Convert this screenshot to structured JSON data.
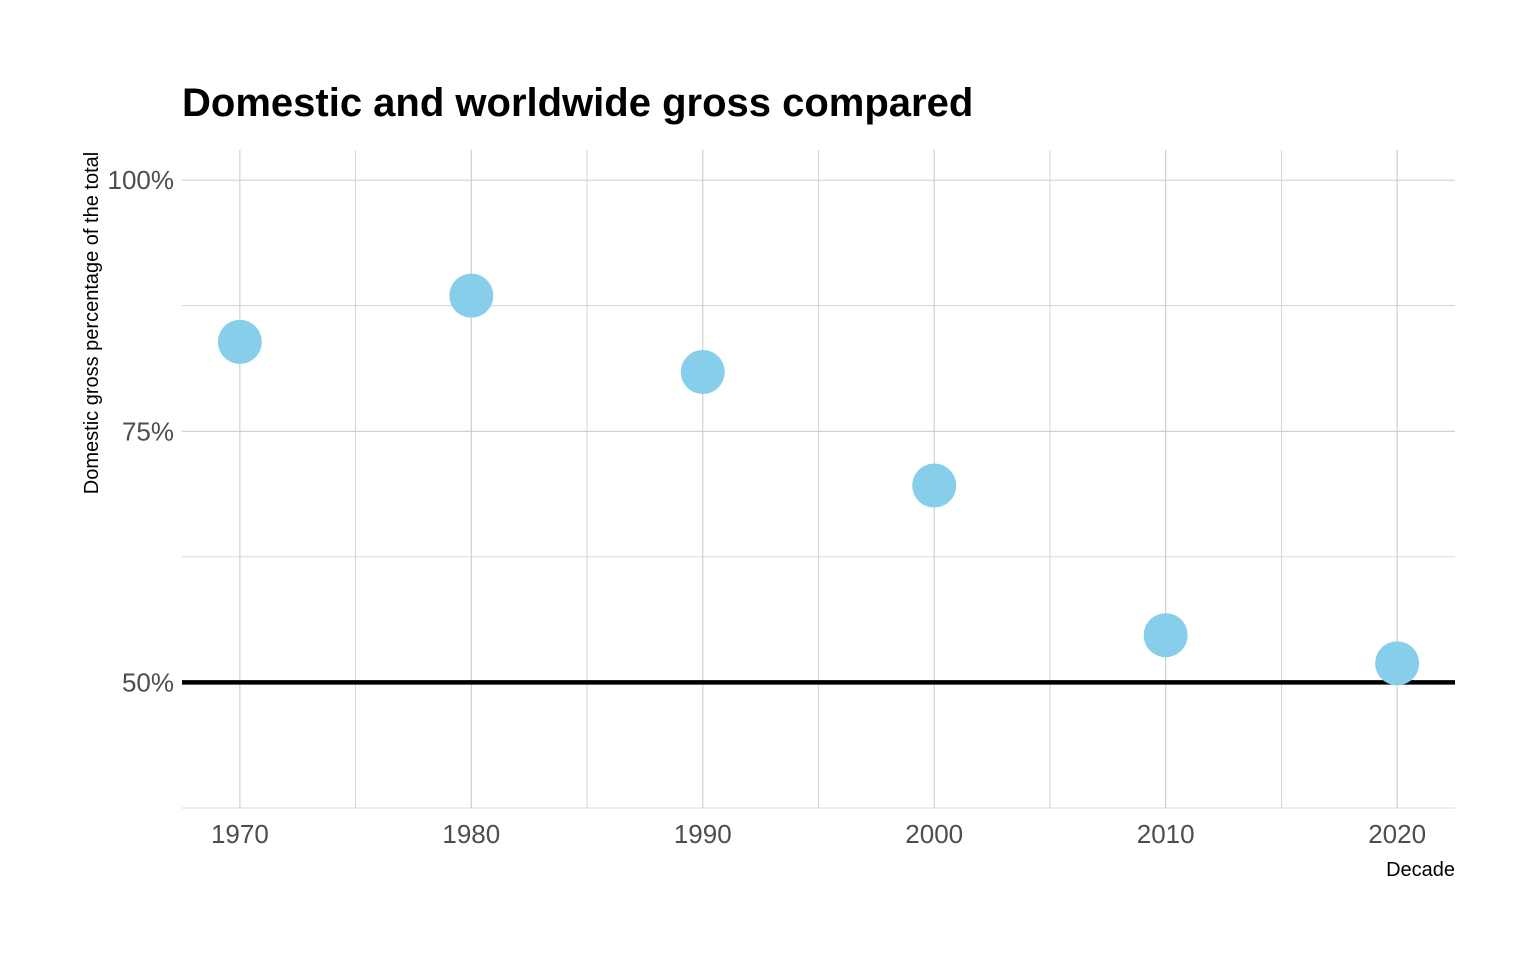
{
  "chart_data": {
    "type": "scatter",
    "title": "Domestic and worldwide gross compared",
    "xlabel": "Decade",
    "ylabel": "Domestic gross percentage of the total",
    "x": [
      1970,
      1980,
      1990,
      2000,
      2010,
      2020
    ],
    "y": [
      0.839,
      0.885,
      0.809,
      0.696,
      0.547,
      0.519
    ],
    "xlim": [
      1967.5,
      2022.5
    ],
    "ylim": [
      0.375,
      1.03
    ],
    "x_ticks": [
      1970,
      1980,
      1990,
      2000,
      2010,
      2020
    ],
    "x_tick_labels": [
      "1970",
      "1980",
      "1990",
      "2000",
      "2010",
      "2020"
    ],
    "y_ticks": [
      0.5,
      0.75,
      1.0
    ],
    "y_tick_labels": [
      "50%",
      "75%",
      "100%"
    ],
    "reference_line": {
      "y": 0.5,
      "color": "#000000"
    },
    "point_color": "#87ceeb",
    "grid": true,
    "legend": "none"
  }
}
